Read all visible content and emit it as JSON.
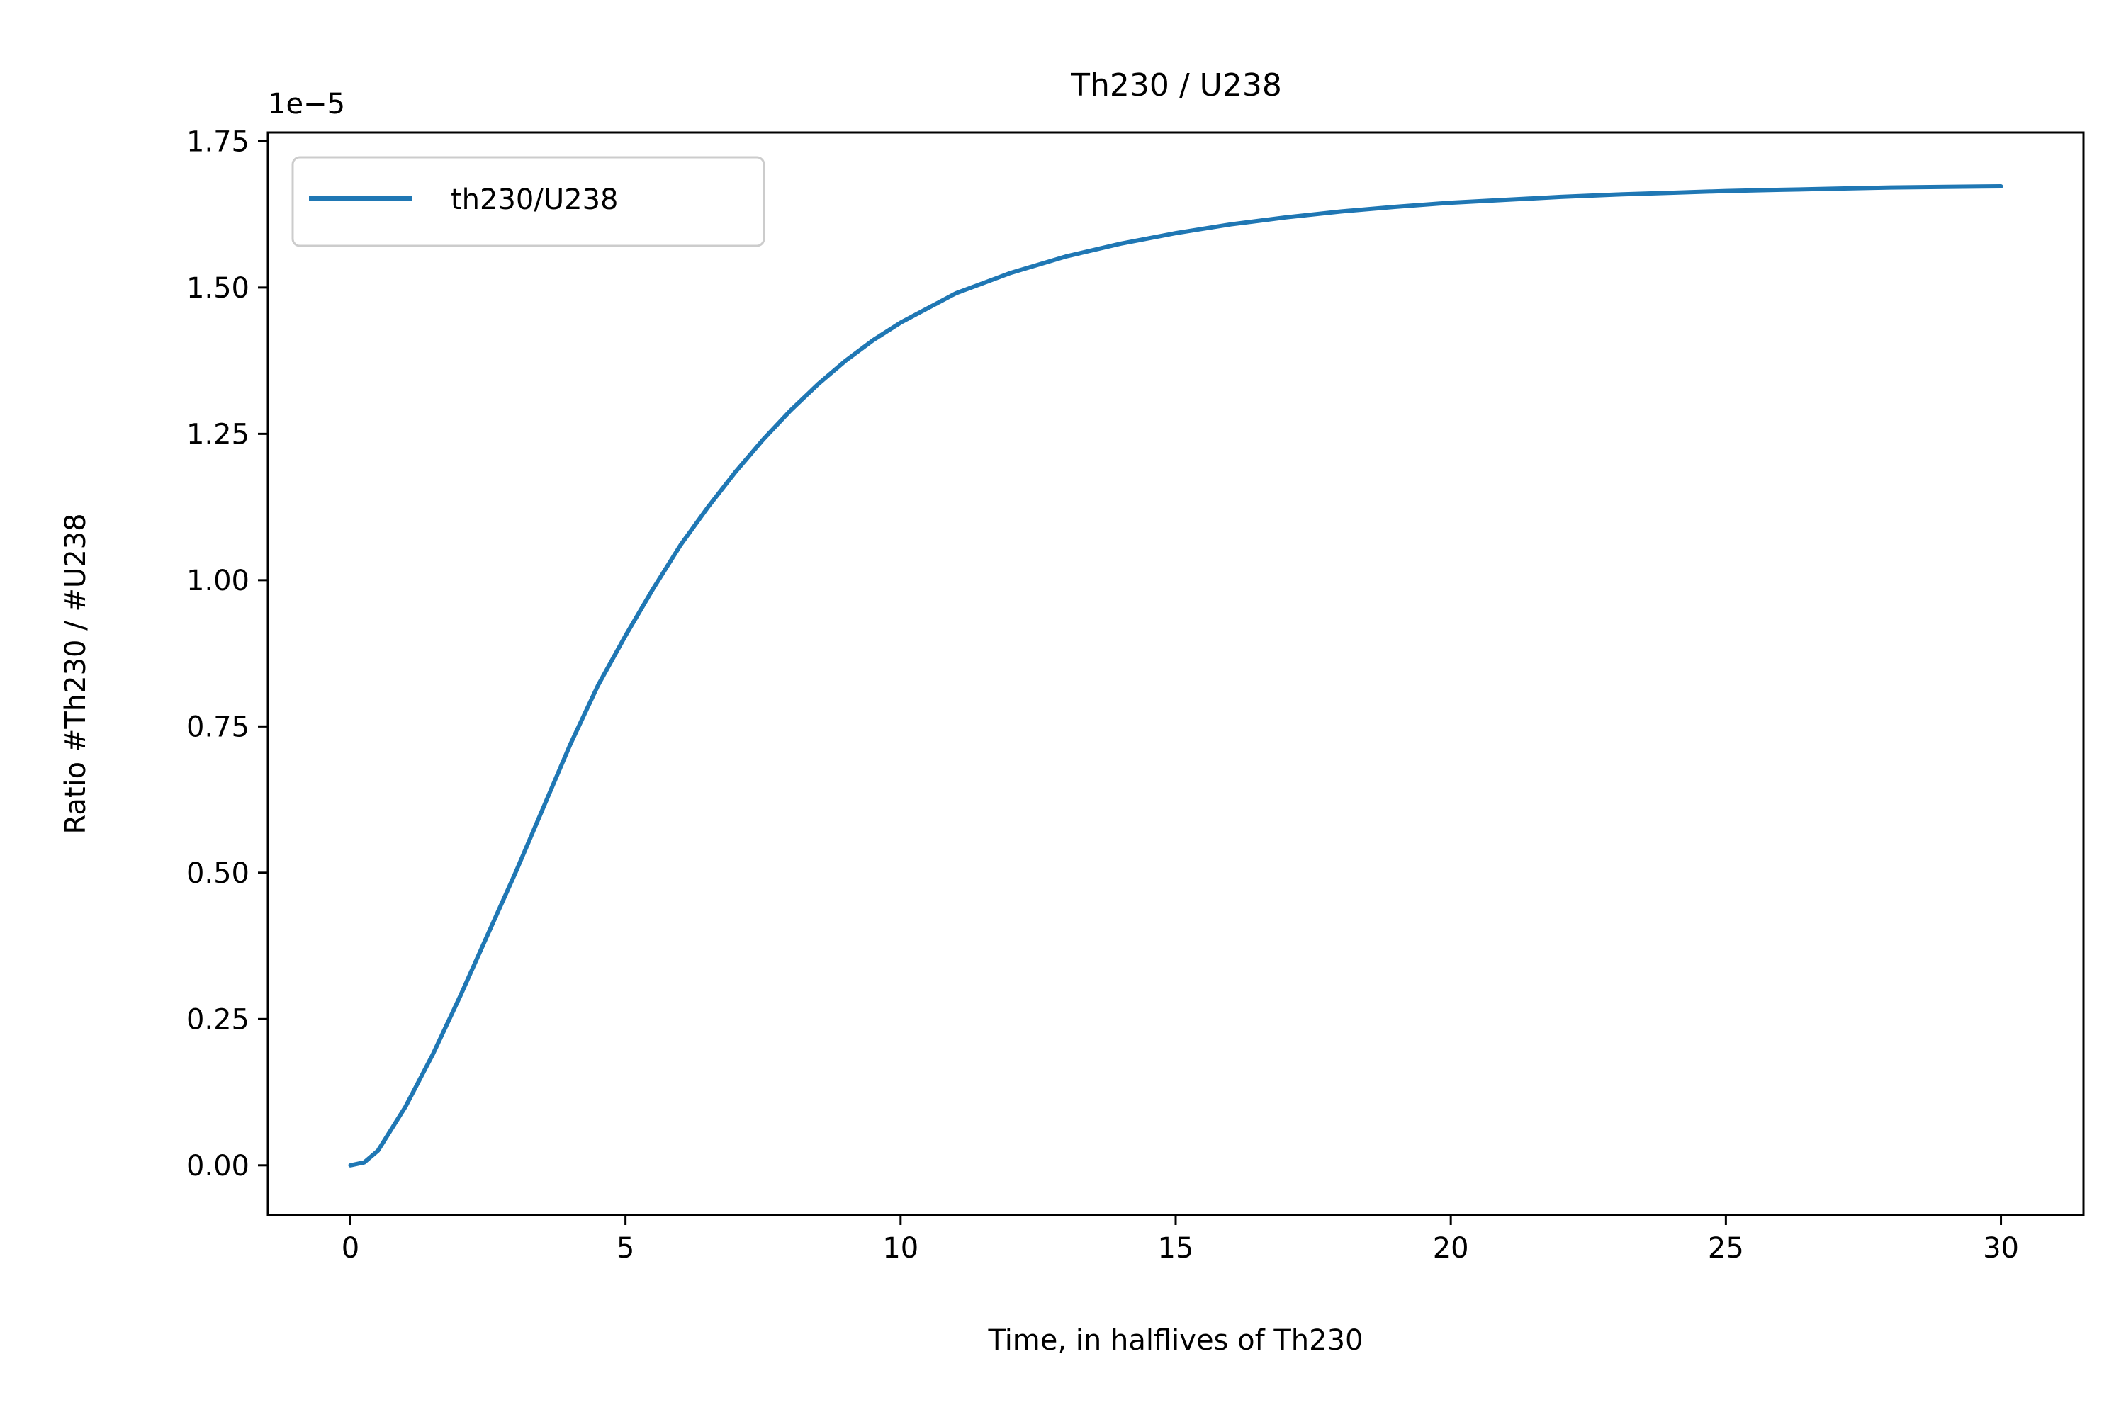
{
  "chart_data": {
    "type": "line",
    "title": "Th230 / U238",
    "xlabel": "Time, in halflives of Th230",
    "ylabel": "Ratio #Th230 / #U238",
    "offset_label": "1e−5",
    "xlim": [
      -1.5,
      31.5
    ],
    "ylim": [
      -0.085,
      1.765
    ],
    "xticks": [
      0,
      5,
      10,
      15,
      20,
      25,
      30
    ],
    "xtick_labels": [
      "0",
      "5",
      "10",
      "15",
      "20",
      "25",
      "30"
    ],
    "yticks": [
      0,
      0.25,
      0.5,
      0.75,
      1.0,
      1.25,
      1.5,
      1.75
    ],
    "ytick_labels": [
      "0.00",
      "0.25",
      "0.50",
      "0.75",
      "1.00",
      "1.25",
      "1.50",
      "1.75"
    ],
    "grid": false,
    "legend_position": "upper-left",
    "series": [
      {
        "name": "th230/U238",
        "color": "#1f77b4",
        "x": [
          0,
          0.25,
          0.5,
          1,
          1.5,
          2,
          2.5,
          3,
          3.5,
          4,
          4.5,
          5,
          5.5,
          6,
          6.5,
          7,
          7.5,
          8,
          8.5,
          9,
          9.5,
          10,
          11,
          12,
          13,
          14,
          15,
          16,
          17,
          18,
          19,
          20,
          21,
          22,
          23,
          24,
          25,
          26,
          27,
          28,
          29,
          30
        ],
        "y": [
          0,
          0.005,
          0.025,
          0.1,
          0.19,
          0.29,
          0.395,
          0.5,
          0.61,
          0.72,
          0.82,
          0.905,
          0.985,
          1.06,
          1.125,
          1.185,
          1.24,
          1.29,
          1.335,
          1.375,
          1.41,
          1.44,
          1.49,
          1.525,
          1.553,
          1.575,
          1.593,
          1.608,
          1.62,
          1.63,
          1.638,
          1.645,
          1.65,
          1.655,
          1.659,
          1.662,
          1.665,
          1.667,
          1.669,
          1.671,
          1.672,
          1.673
        ]
      }
    ]
  }
}
